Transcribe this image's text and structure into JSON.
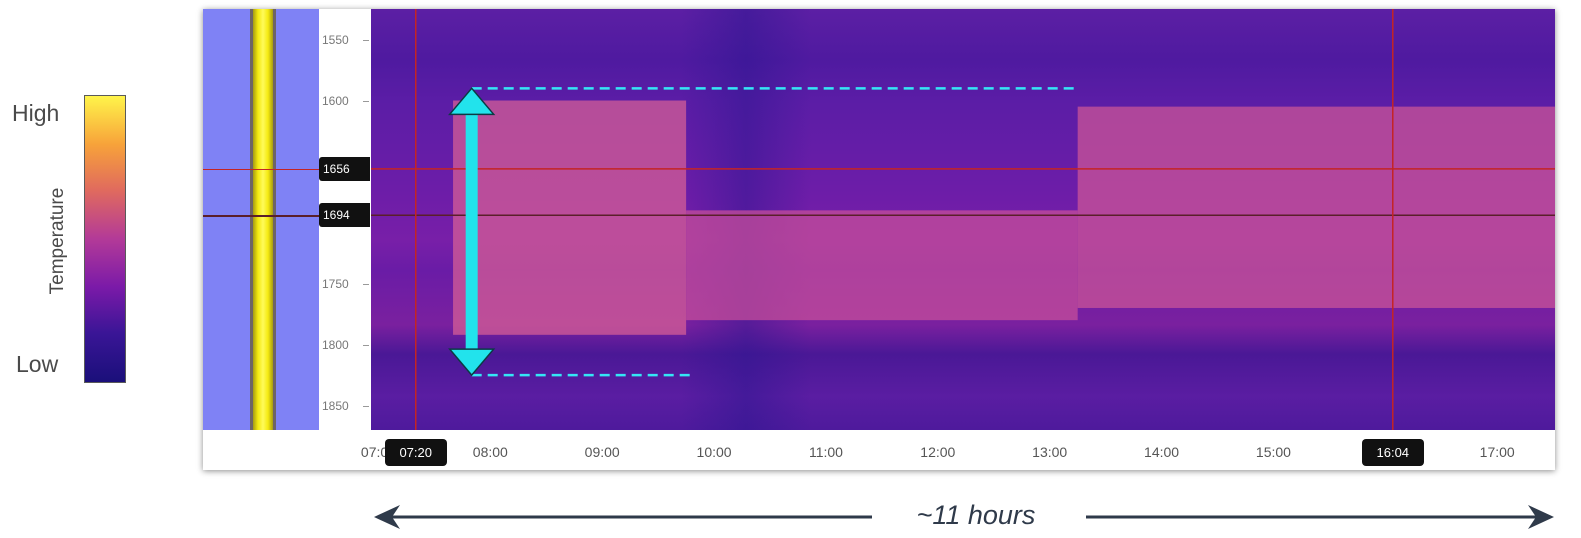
{
  "chart_data": {
    "type": "heatmap",
    "colorbar": {
      "label": "Temperature",
      "high_label": "High",
      "low_label": "Low",
      "colors": [
        "#1a0f7a",
        "#3a1596",
        "#7a1aa8",
        "#b33a98",
        "#e06a5e",
        "#f7a23a",
        "#fff44a"
      ]
    },
    "y_axis": {
      "range": [
        1525,
        1870
      ],
      "ticks": [
        1550,
        1600,
        1750,
        1800,
        1850
      ],
      "reversed": true
    },
    "x_axis": {
      "range": [
        "06:56",
        "17:31"
      ],
      "ticks": [
        {
          "label": "07:00",
          "time": "07:00"
        },
        {
          "label": "08:00",
          "time": "08:00"
        },
        {
          "label": "09:00",
          "time": "09:00"
        },
        {
          "label": "10:00",
          "time": "10:00"
        },
        {
          "label": "11:00",
          "time": "11:00"
        },
        {
          "label": "12:00",
          "time": "12:00"
        },
        {
          "label": "13:00",
          "time": "13:00"
        },
        {
          "label": "14:00",
          "time": "14:00"
        },
        {
          "label": "15:00",
          "time": "15:00"
        },
        {
          "label": "16:00",
          "time": "16:00"
        },
        {
          "label": "17:00",
          "time": "17:00"
        }
      ]
    },
    "cursors": {
      "depths": [
        {
          "label": "1656",
          "depth": 1656
        },
        {
          "label": "1694",
          "depth": 1694
        }
      ],
      "times": [
        {
          "label": "07:20",
          "time": "07:20"
        },
        {
          "label": "16:04",
          "time": "16:04"
        }
      ]
    },
    "events": [
      {
        "start": "07:40",
        "end": "09:45",
        "top": 1600,
        "bottom": 1792
      },
      {
        "start": "09:45",
        "end": "13:15",
        "top": 1690,
        "bottom": 1780
      },
      {
        "start": "13:15",
        "end": "17:31",
        "top": 1605,
        "bottom": 1770
      }
    ],
    "annotations": {
      "range_arrow": {
        "time": "07:50",
        "top": 1590,
        "bottom": 1825
      },
      "top_dashed": {
        "from": "07:50",
        "to": "13:15",
        "depth": 1590
      },
      "bottom_dashed": {
        "from": "07:50",
        "to": "09:50",
        "depth": 1825
      },
      "duration_text": "~11 hours"
    }
  }
}
